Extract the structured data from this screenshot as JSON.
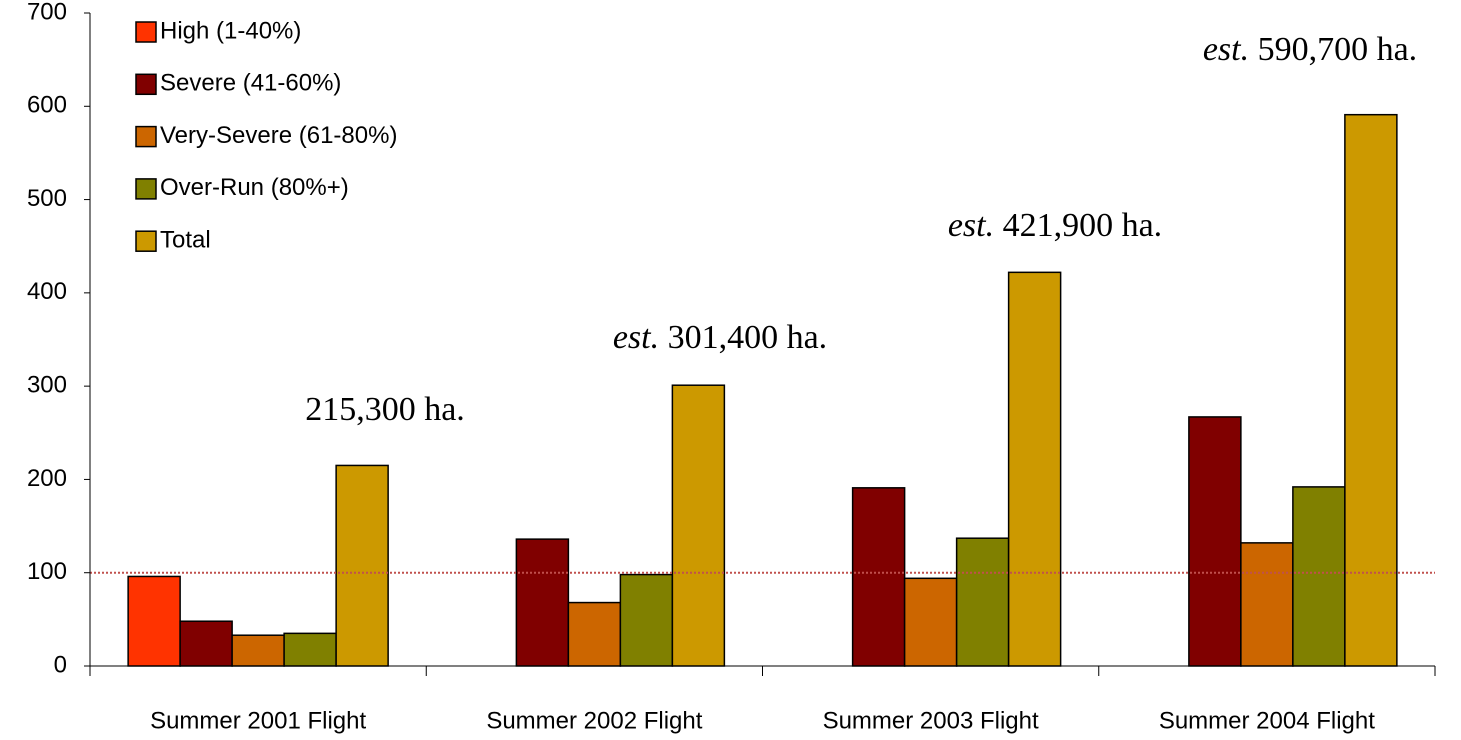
{
  "chart_data": {
    "type": "bar",
    "categories": [
      "Summer 2001 Flight",
      "Summer 2002 Flight",
      "Summer 2003 Flight",
      "Summer 2004 Flight"
    ],
    "series": [
      {
        "name": "High (1-40%)",
        "color": "#ff3300",
        "values": [
          96,
          null,
          null,
          null
        ]
      },
      {
        "name": "Severe (41-60%)",
        "color": "#800000",
        "values": [
          48,
          136,
          191,
          267
        ]
      },
      {
        "name": "Very-Severe (61-80%)",
        "color": "#cc6600",
        "values": [
          33,
          68,
          94,
          132
        ]
      },
      {
        "name": "Over-Run (80%+)",
        "color": "#808000",
        "values": [
          35,
          98,
          137,
          192
        ]
      },
      {
        "name": "Total",
        "color": "#cc9900",
        "values": [
          215,
          301,
          422,
          591
        ]
      }
    ],
    "annotations": [
      {
        "text": "215,300 ha."
      },
      {
        "italic": "est.",
        "text": "301,400 ha."
      },
      {
        "italic": "est.",
        "text": "421,900 ha."
      },
      {
        "italic": "est.",
        "text": "590,700 ha."
      }
    ],
    "reference_line": 100,
    "reference_color": "#c0504d",
    "ylim": [
      0,
      700
    ],
    "yticks": [
      0,
      100,
      200,
      300,
      400,
      500,
      600,
      700
    ],
    "legend": "top-left"
  }
}
